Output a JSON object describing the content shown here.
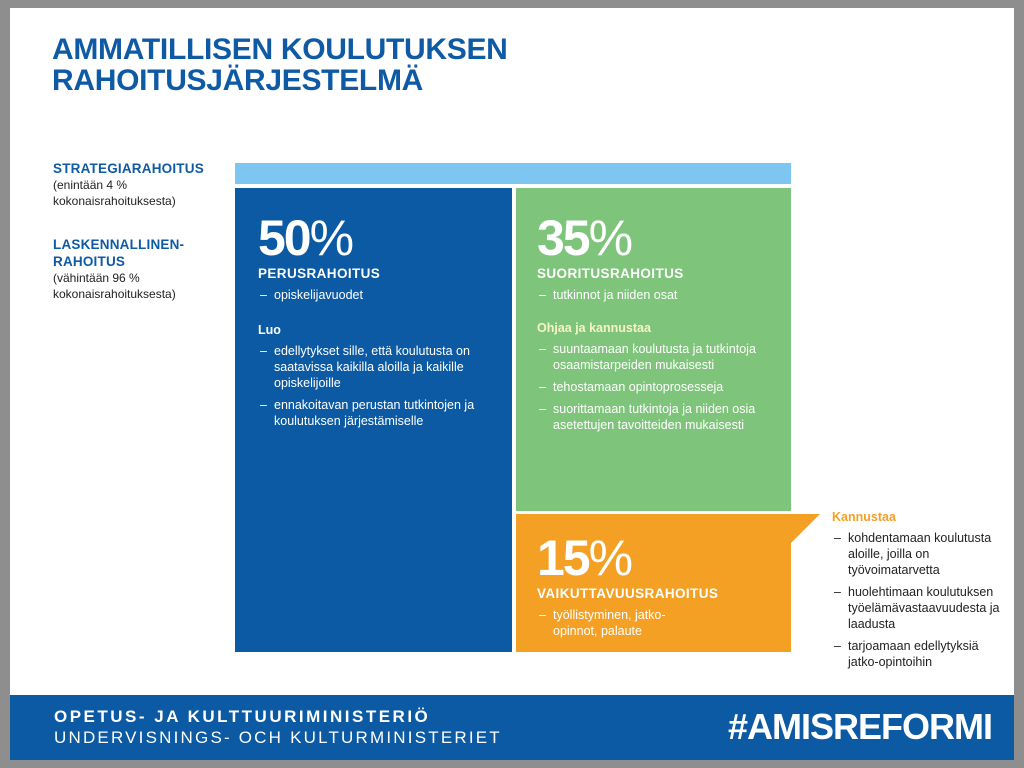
{
  "title": {
    "line1": "AMMATILLISEN KOULUTUKSEN",
    "line2": "RAHOITUSJÄRJESTELMÄ"
  },
  "side": {
    "strategic": {
      "heading": "STRATEGIARAHOITUS",
      "note_line1": "(enintään 4 %",
      "note_line2": "kokonaisrahoituksesta)"
    },
    "computational": {
      "heading_line1": "LASKENNALLINEN-",
      "heading_line2": "RAHOITUS",
      "note_line1": "(vähintään 96 %",
      "note_line2": "kokonaisrahoituksesta)"
    }
  },
  "basic": {
    "percent": "50",
    "sign": "%",
    "name": "PERUSRAHOITUS",
    "basis": [
      "opiskelijavuodet"
    ],
    "subhead": "Luo",
    "items": [
      "edellytykset sille, että koulutusta on saatavissa kaikilla aloilla ja kaikille opiskelijoille",
      "ennakoitavan perustan tutkintojen ja koulutuksen järjestämiselle"
    ],
    "color": "#0b5aa3"
  },
  "performance": {
    "percent": "35",
    "sign": "%",
    "name": "SUORITUSRAHOITUS",
    "basis": [
      "tutkinnot ja niiden osat"
    ],
    "subhead": "Ohjaa ja kannustaa",
    "items": [
      "suuntaamaan koulutusta ja tutkintoja osaamistarpeiden mukaisesti",
      "tehostamaan opintoprosesseja",
      "suorittamaan tutkintoja ja niiden osia asetettujen tavoitteiden mukaisesti"
    ],
    "color": "#7ec57b"
  },
  "effectiveness": {
    "percent": "15",
    "sign": "%",
    "name": "VAIKUTTAVUUSRAHOITUS",
    "basis": [
      "työllistyminen, jatko-opinnot, palaute"
    ],
    "subhead": "Kannustaa",
    "items": [
      "kohdentamaan koulutusta aloille, joilla on työvoimatarvetta",
      "huolehtimaan koulutuksen työelämävastaavuudesta ja laadusta",
      "tarjoamaan edellytyksiä jatko-opintoihin"
    ],
    "color": "#f4a024"
  },
  "footer": {
    "ministry_fi": "OPETUS- JA KULTTUURIMINISTERIÖ",
    "ministry_sv": "UNDERVISNINGS- OCH KULTURMINISTERIET",
    "hashtag": "#AMISREFORMI"
  }
}
